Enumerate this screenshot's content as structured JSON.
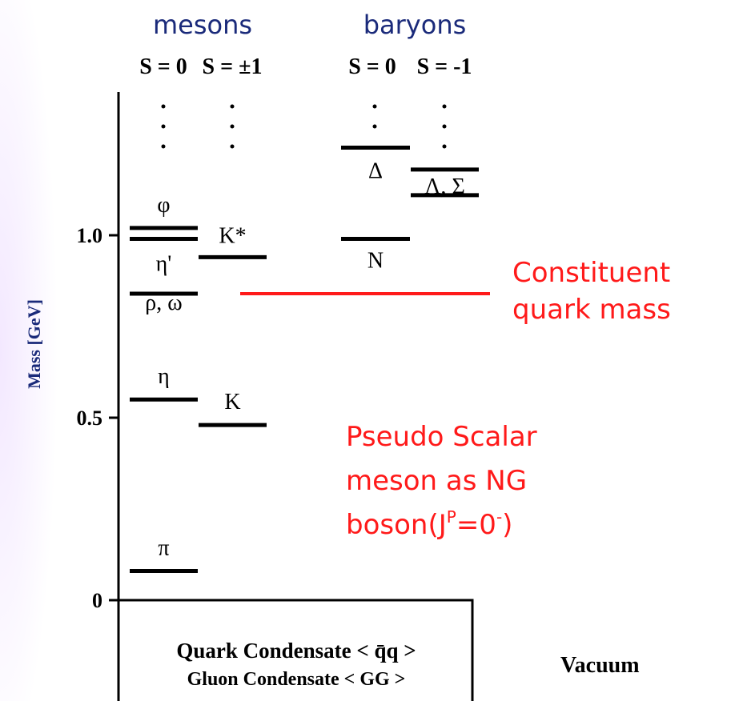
{
  "axis": {
    "label": "Mass [GeV]",
    "ylim": [
      0,
      1.4
    ],
    "yticks": [
      {
        "value": 1,
        "label": "1.0"
      },
      0.5,
      0
    ]
  },
  "groups": [
    "mesons",
    "baryons"
  ],
  "columns": [
    "S = 0",
    "S = ±1",
    "S = 0",
    "S = -1"
  ],
  "levels": [
    {
      "label": "φ",
      "column": 0,
      "mass": 1.02
    },
    {
      "label": "η'",
      "column": 0,
      "mass": 0.99
    },
    {
      "label": "ρ, ω",
      "column": 0,
      "mass": 0.84
    },
    {
      "label": "η",
      "column": 0,
      "mass": 0.55
    },
    {
      "label": "π",
      "column": 0,
      "mass": 0.08
    },
    {
      "label": "K*",
      "column": 1,
      "mass": 0.94
    },
    {
      "label": "K",
      "column": 1,
      "mass": 0.48
    },
    {
      "label": "Δ",
      "column": 2,
      "mass": 1.24
    },
    {
      "label": "N",
      "column": 2,
      "mass": 0.99
    },
    {
      "label": "Λ, Σ",
      "column": 3,
      "mass": 1.18
    },
    {
      "column": 3,
      "mass": 1.11
    }
  ],
  "constituent": {
    "mass": 0.84,
    "lines": [
      "Constituent",
      "quark mass"
    ]
  },
  "ng_note": {
    "lines": [
      "Pseudo Scalar",
      "meson as NG"
    ],
    "last": [
      "boson(J",
      "P",
      "=0",
      "-",
      ")"
    ]
  },
  "vacuum": {
    "lines": [
      "Quark Condensate < q̄q >",
      "Gluon Condensate < GG >"
    ],
    "label": "Vacuum"
  }
}
